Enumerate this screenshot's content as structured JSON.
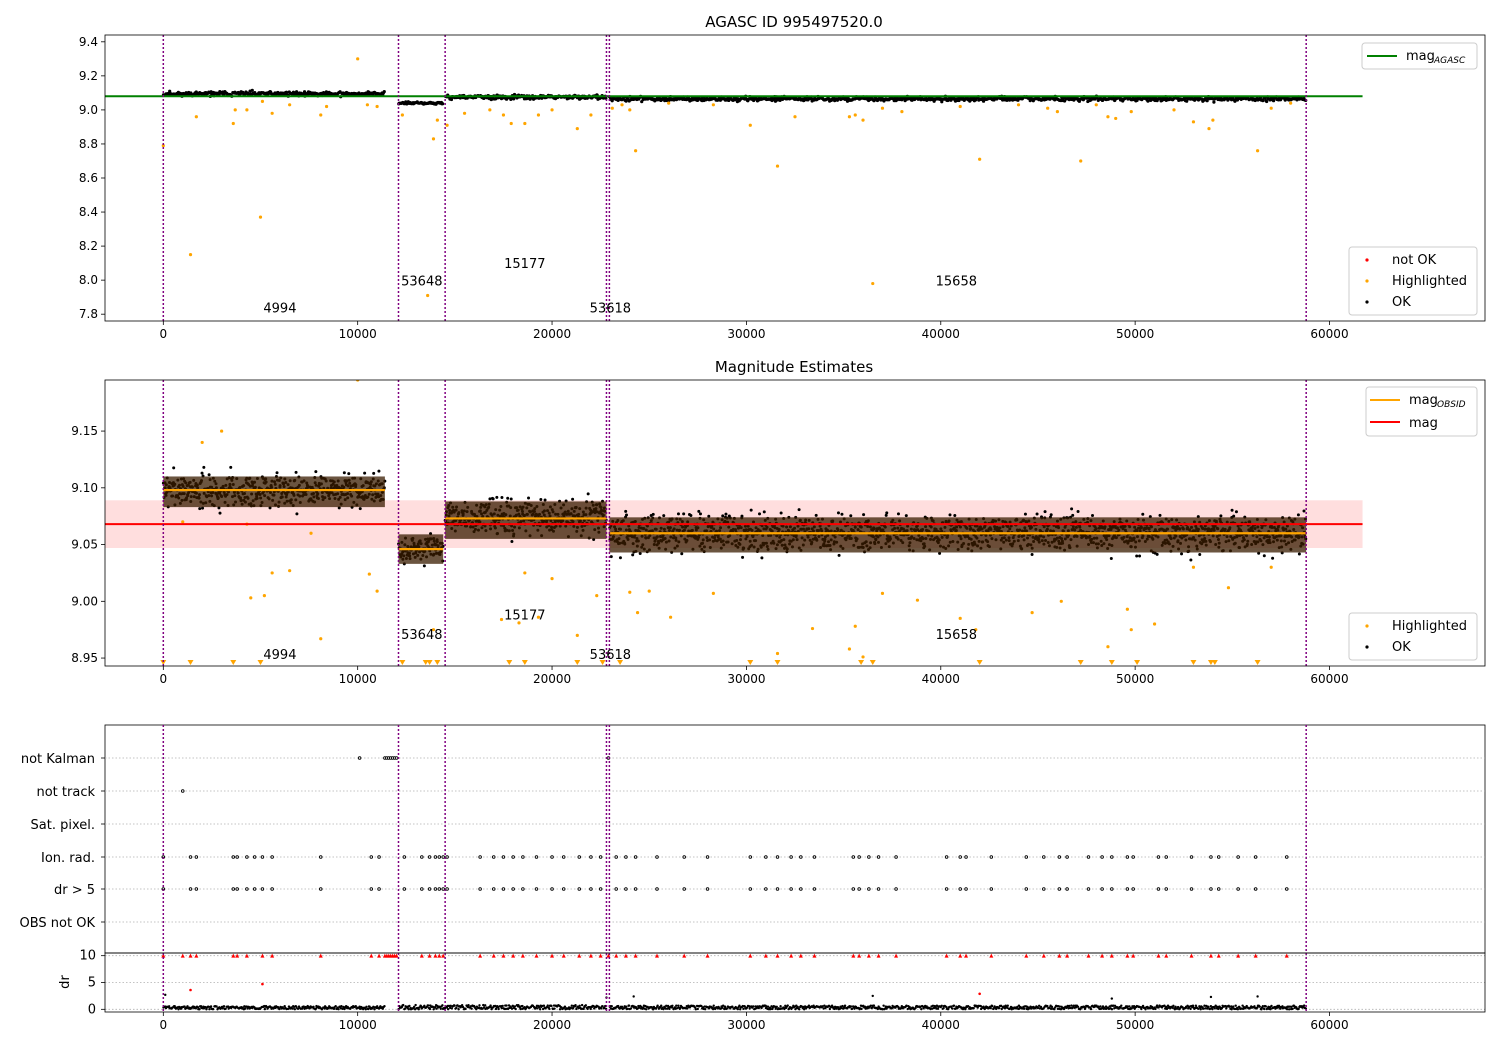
{
  "figure": {
    "title": "AGASC ID 995497520.0",
    "subtitle": "Magnitude Estimates"
  },
  "colors": {
    "ok": "#000000",
    "highlighted": "#ffa500",
    "not_ok": "#ff0000",
    "agasc_line": "#008000",
    "obsid_line": "#ffa500",
    "mag_line": "#ff0000",
    "mag_band": "#ffdede",
    "boundary": "#800080",
    "error_bar": "#3a1c00"
  },
  "chart_data": [
    {
      "type": "scatter",
      "title": "AGASC ID 995497520.0",
      "xlim": [
        -3000,
        68000
      ],
      "ylim": [
        7.76,
        9.44
      ],
      "x_ticks": [
        0,
        10000,
        20000,
        30000,
        40000,
        50000,
        60000
      ],
      "y_ticks": [
        7.8,
        8.0,
        8.2,
        8.4,
        8.6,
        8.8,
        9.0,
        9.2,
        9.4
      ],
      "y_tick_labels": [
        "7.8",
        "8.0",
        "8.2",
        "8.4",
        "8.6",
        "8.8",
        "9.0",
        "9.2",
        "9.4"
      ],
      "mag_agasc": 9.08,
      "mag_agasc_range": [
        -3000,
        61700
      ],
      "obs_boundaries": [
        0,
        12100,
        14500,
        22800,
        22950,
        58800
      ],
      "obs_labels": [
        {
          "text": "4994",
          "x": 6000,
          "y": 7.81
        },
        {
          "text": "53648",
          "x": 13300,
          "y": 7.97
        },
        {
          "text": "15177",
          "x": 18600,
          "y": 8.07
        },
        {
          "text": "53618",
          "x": 23000,
          "y": 7.81
        },
        {
          "text": "15658",
          "x": 40800,
          "y": 7.97
        }
      ],
      "obs_segments": [
        {
          "x": [
            0,
            11400
          ],
          "center": 9.095,
          "spread": 0.012
        },
        {
          "x": [
            12100,
            14400
          ],
          "center": 9.04,
          "spread": 0.006
        },
        {
          "x": [
            14500,
            22800
          ],
          "center": 9.075,
          "spread": 0.011
        },
        {
          "x": [
            22950,
            58800
          ],
          "center": 9.065,
          "spread": 0.011
        }
      ],
      "highlighted_points": [
        [
          0,
          8.79
        ],
        [
          1400,
          8.15
        ],
        [
          1700,
          8.96
        ],
        [
          3600,
          8.92
        ],
        [
          3700,
          9.0
        ],
        [
          4300,
          9.0
        ],
        [
          5000,
          8.37
        ],
        [
          5100,
          9.05
        ],
        [
          5600,
          8.98
        ],
        [
          6500,
          9.03
        ],
        [
          8100,
          8.97
        ],
        [
          8400,
          9.02
        ],
        [
          10000,
          9.3
        ],
        [
          10500,
          9.03
        ],
        [
          11000,
          9.02
        ],
        [
          12300,
          8.97
        ],
        [
          13600,
          7.91
        ],
        [
          13900,
          8.83
        ],
        [
          14100,
          8.94
        ],
        [
          14600,
          8.91
        ],
        [
          15500,
          8.98
        ],
        [
          16800,
          9.0
        ],
        [
          17500,
          8.97
        ],
        [
          17900,
          8.92
        ],
        [
          18600,
          8.92
        ],
        [
          19300,
          8.97
        ],
        [
          20000,
          9.0
        ],
        [
          21300,
          8.89
        ],
        [
          22000,
          8.97
        ],
        [
          23100,
          9.01
        ],
        [
          23600,
          9.03
        ],
        [
          24000,
          9.0
        ],
        [
          24300,
          8.76
        ],
        [
          26000,
          9.04
        ],
        [
          28300,
          9.03
        ],
        [
          30200,
          8.91
        ],
        [
          31600,
          8.67
        ],
        [
          32500,
          8.96
        ],
        [
          35300,
          8.96
        ],
        [
          35600,
          8.97
        ],
        [
          36000,
          8.94
        ],
        [
          36500,
          7.98
        ],
        [
          37000,
          9.01
        ],
        [
          38000,
          8.99
        ],
        [
          41000,
          9.02
        ],
        [
          42000,
          8.71
        ],
        [
          44000,
          9.03
        ],
        [
          45500,
          9.01
        ],
        [
          46000,
          8.99
        ],
        [
          47200,
          8.7
        ],
        [
          48000,
          9.03
        ],
        [
          48600,
          8.96
        ],
        [
          49000,
          8.95
        ],
        [
          49800,
          8.99
        ],
        [
          52000,
          9.0
        ],
        [
          53000,
          8.93
        ],
        [
          53800,
          8.89
        ],
        [
          54000,
          8.94
        ],
        [
          56300,
          8.76
        ],
        [
          57000,
          9.01
        ],
        [
          58000,
          9.04
        ]
      ],
      "legend_lines": [
        {
          "label": "mag",
          "sub": "AGASC"
        }
      ],
      "legend_markers": [
        "not OK",
        "Highlighted",
        "OK"
      ]
    },
    {
      "type": "scatter",
      "title": "Magnitude Estimates",
      "xlim": [
        -3000,
        68000
      ],
      "ylim": [
        8.943,
        9.195
      ],
      "x_ticks": [
        0,
        10000,
        20000,
        30000,
        40000,
        50000,
        60000
      ],
      "y_ticks": [
        8.95,
        9.0,
        9.05,
        9.1,
        9.15
      ],
      "y_tick_labels": [
        "8.95",
        "9.00",
        "9.05",
        "9.10",
        "9.15"
      ],
      "mag": 9.068,
      "mag_band": [
        9.047,
        9.089
      ],
      "mag_range": [
        -3000,
        61700
      ],
      "obs_boundaries": [
        0,
        12100,
        14500,
        22800,
        22950,
        58800
      ],
      "obs_labels": [
        {
          "text": "4994",
          "x": 6000,
          "y": 8.949
        },
        {
          "text": "53648",
          "x": 13300,
          "y": 8.967
        },
        {
          "text": "15177",
          "x": 18600,
          "y": 8.984
        },
        {
          "text": "53618",
          "x": 23000,
          "y": 8.949
        },
        {
          "text": "15658",
          "x": 40800,
          "y": 8.967
        }
      ],
      "obs_segments": [
        {
          "x": [
            0,
            11400
          ],
          "mean": 9.098,
          "band": [
            9.083,
            9.11
          ],
          "spread": 0.012
        },
        {
          "x": [
            12100,
            14400
          ],
          "mean": 9.046,
          "band": [
            9.033,
            9.059
          ],
          "spread": 0.009
        },
        {
          "x": [
            14500,
            22800
          ],
          "mean": 9.073,
          "band": [
            9.055,
            9.088
          ],
          "spread": 0.013
        },
        {
          "x": [
            22950,
            58800
          ],
          "mean": 9.06,
          "band": [
            9.043,
            9.074
          ],
          "spread": 0.013
        }
      ],
      "highlighted_points": [
        [
          1000,
          9.07
        ],
        [
          2000,
          9.14
        ],
        [
          3000,
          9.15
        ],
        [
          4300,
          9.068
        ],
        [
          4500,
          9.003
        ],
        [
          5200,
          9.005
        ],
        [
          5600,
          9.025
        ],
        [
          6500,
          9.027
        ],
        [
          7600,
          9.06
        ],
        [
          8100,
          8.967
        ],
        [
          10000,
          9.195
        ],
        [
          10600,
          9.024
        ],
        [
          11000,
          9.009
        ],
        [
          13900,
          8.975
        ],
        [
          17400,
          8.984
        ],
        [
          18300,
          8.981
        ],
        [
          18600,
          9.025
        ],
        [
          19300,
          8.986
        ],
        [
          20000,
          9.02
        ],
        [
          21300,
          8.97
        ],
        [
          22300,
          9.005
        ],
        [
          24000,
          9.008
        ],
        [
          24400,
          8.99
        ],
        [
          25000,
          9.009
        ],
        [
          26100,
          8.986
        ],
        [
          28300,
          9.007
        ],
        [
          31600,
          8.954
        ],
        [
          33400,
          8.976
        ],
        [
          35300,
          8.958
        ],
        [
          35600,
          8.978
        ],
        [
          36000,
          8.951
        ],
        [
          37000,
          9.007
        ],
        [
          38800,
          9.001
        ],
        [
          41000,
          8.985
        ],
        [
          41800,
          8.975
        ],
        [
          44700,
          8.99
        ],
        [
          46200,
          9.0
        ],
        [
          48600,
          8.96
        ],
        [
          49600,
          8.993
        ],
        [
          49800,
          8.975
        ],
        [
          51000,
          8.98
        ],
        [
          53000,
          9.03
        ],
        [
          54800,
          9.012
        ],
        [
          57000,
          9.03
        ]
      ],
      "highlighted_below_range_x": [
        0,
        1400,
        3600,
        5000,
        12300,
        13500,
        13700,
        14100,
        17800,
        18600,
        21300,
        22600,
        23500,
        30200,
        31600,
        35900,
        36500,
        42000,
        47200,
        48800,
        50100,
        53000,
        53900,
        54100,
        56300
      ],
      "legend_lines": [
        {
          "label": "mag",
          "sub": "OBSID"
        },
        {
          "label": "mag",
          "sub": ""
        }
      ],
      "legend_markers": [
        "Highlighted",
        "OK"
      ]
    },
    {
      "type": "scatter",
      "title": "",
      "xlim": [
        -3000,
        68000
      ],
      "flag_rows": [
        "not Kalman",
        "not track",
        "Sat. pixel.",
        "Ion. rad.",
        "dr > 5",
        "OBS not OK"
      ],
      "dr_ylim": [
        -0.5,
        10.5
      ],
      "dr_y_ticks": [
        0,
        5,
        10
      ],
      "dr_ylabel": "dr",
      "x_ticks": [
        0,
        10000,
        20000,
        30000,
        40000,
        50000,
        60000
      ],
      "obs_boundaries": [
        0,
        12100,
        14500,
        22800,
        22950,
        58800
      ],
      "not_kalman_x": [
        10100,
        11400,
        11500,
        11600,
        11700,
        11800,
        11900,
        12000,
        22900
      ],
      "not_track_x": [
        1000
      ],
      "ion_rad_x": [
        0,
        1400,
        1700,
        3600,
        3800,
        4300,
        4700,
        5100,
        5600,
        8100,
        10700,
        11100,
        12400,
        13300,
        13700,
        14000,
        14200,
        14400,
        14600,
        16300,
        17000,
        17500,
        18000,
        18500,
        19200,
        20000,
        20600,
        21400,
        22000,
        22500,
        23300,
        23800,
        24300,
        25400,
        26800,
        28000,
        30200,
        31000,
        31600,
        32300,
        32800,
        33500,
        35500,
        35800,
        36300,
        36800,
        37700,
        40300,
        41000,
        41300,
        42600,
        44400,
        45300,
        46100,
        46500,
        47600,
        48300,
        48800,
        49600,
        49900,
        51200,
        51600,
        52900,
        53900,
        54300,
        55300,
        56200,
        57800
      ],
      "dr_red_x": [
        0,
        1000,
        1400,
        1700,
        3600,
        3800,
        4300,
        5100,
        5600,
        8100,
        10700,
        11100,
        11400,
        11500,
        11600,
        11700,
        11800,
        11900,
        12000,
        13300,
        13700,
        14000,
        14200,
        14400,
        16300,
        17000,
        17500,
        18000,
        18500,
        19200,
        20000,
        20600,
        21400,
        22000,
        22500,
        22900,
        23300,
        23800,
        24300,
        25400,
        26800,
        28000,
        30200,
        31000,
        31600,
        32300,
        32800,
        33500,
        35500,
        35800,
        36300,
        36800,
        37700,
        40300,
        41000,
        41300,
        42600,
        44400,
        45300,
        46100,
        46500,
        47600,
        48300,
        48800,
        49600,
        49900,
        51200,
        51600,
        52900,
        53900,
        54300,
        55300,
        56200,
        57800
      ],
      "dr_red_low": [
        [
          1400,
          3.6
        ],
        [
          5100,
          4.7
        ],
        [
          42000,
          2.9
        ]
      ],
      "dr_black_segments": [
        {
          "x": [
            0,
            11400
          ],
          "max": 0.6
        },
        {
          "x": [
            12100,
            22800
          ],
          "max": 0.8
        },
        {
          "x": [
            22950,
            58800
          ],
          "max": 0.7
        }
      ],
      "dr_black_outliers": [
        [
          100,
          2.7
        ],
        [
          22800,
          2.2
        ],
        [
          24200,
          2.4
        ],
        [
          36500,
          2.5
        ],
        [
          48800,
          2.0
        ],
        [
          53900,
          2.3
        ],
        [
          56300,
          2.4
        ]
      ]
    }
  ]
}
